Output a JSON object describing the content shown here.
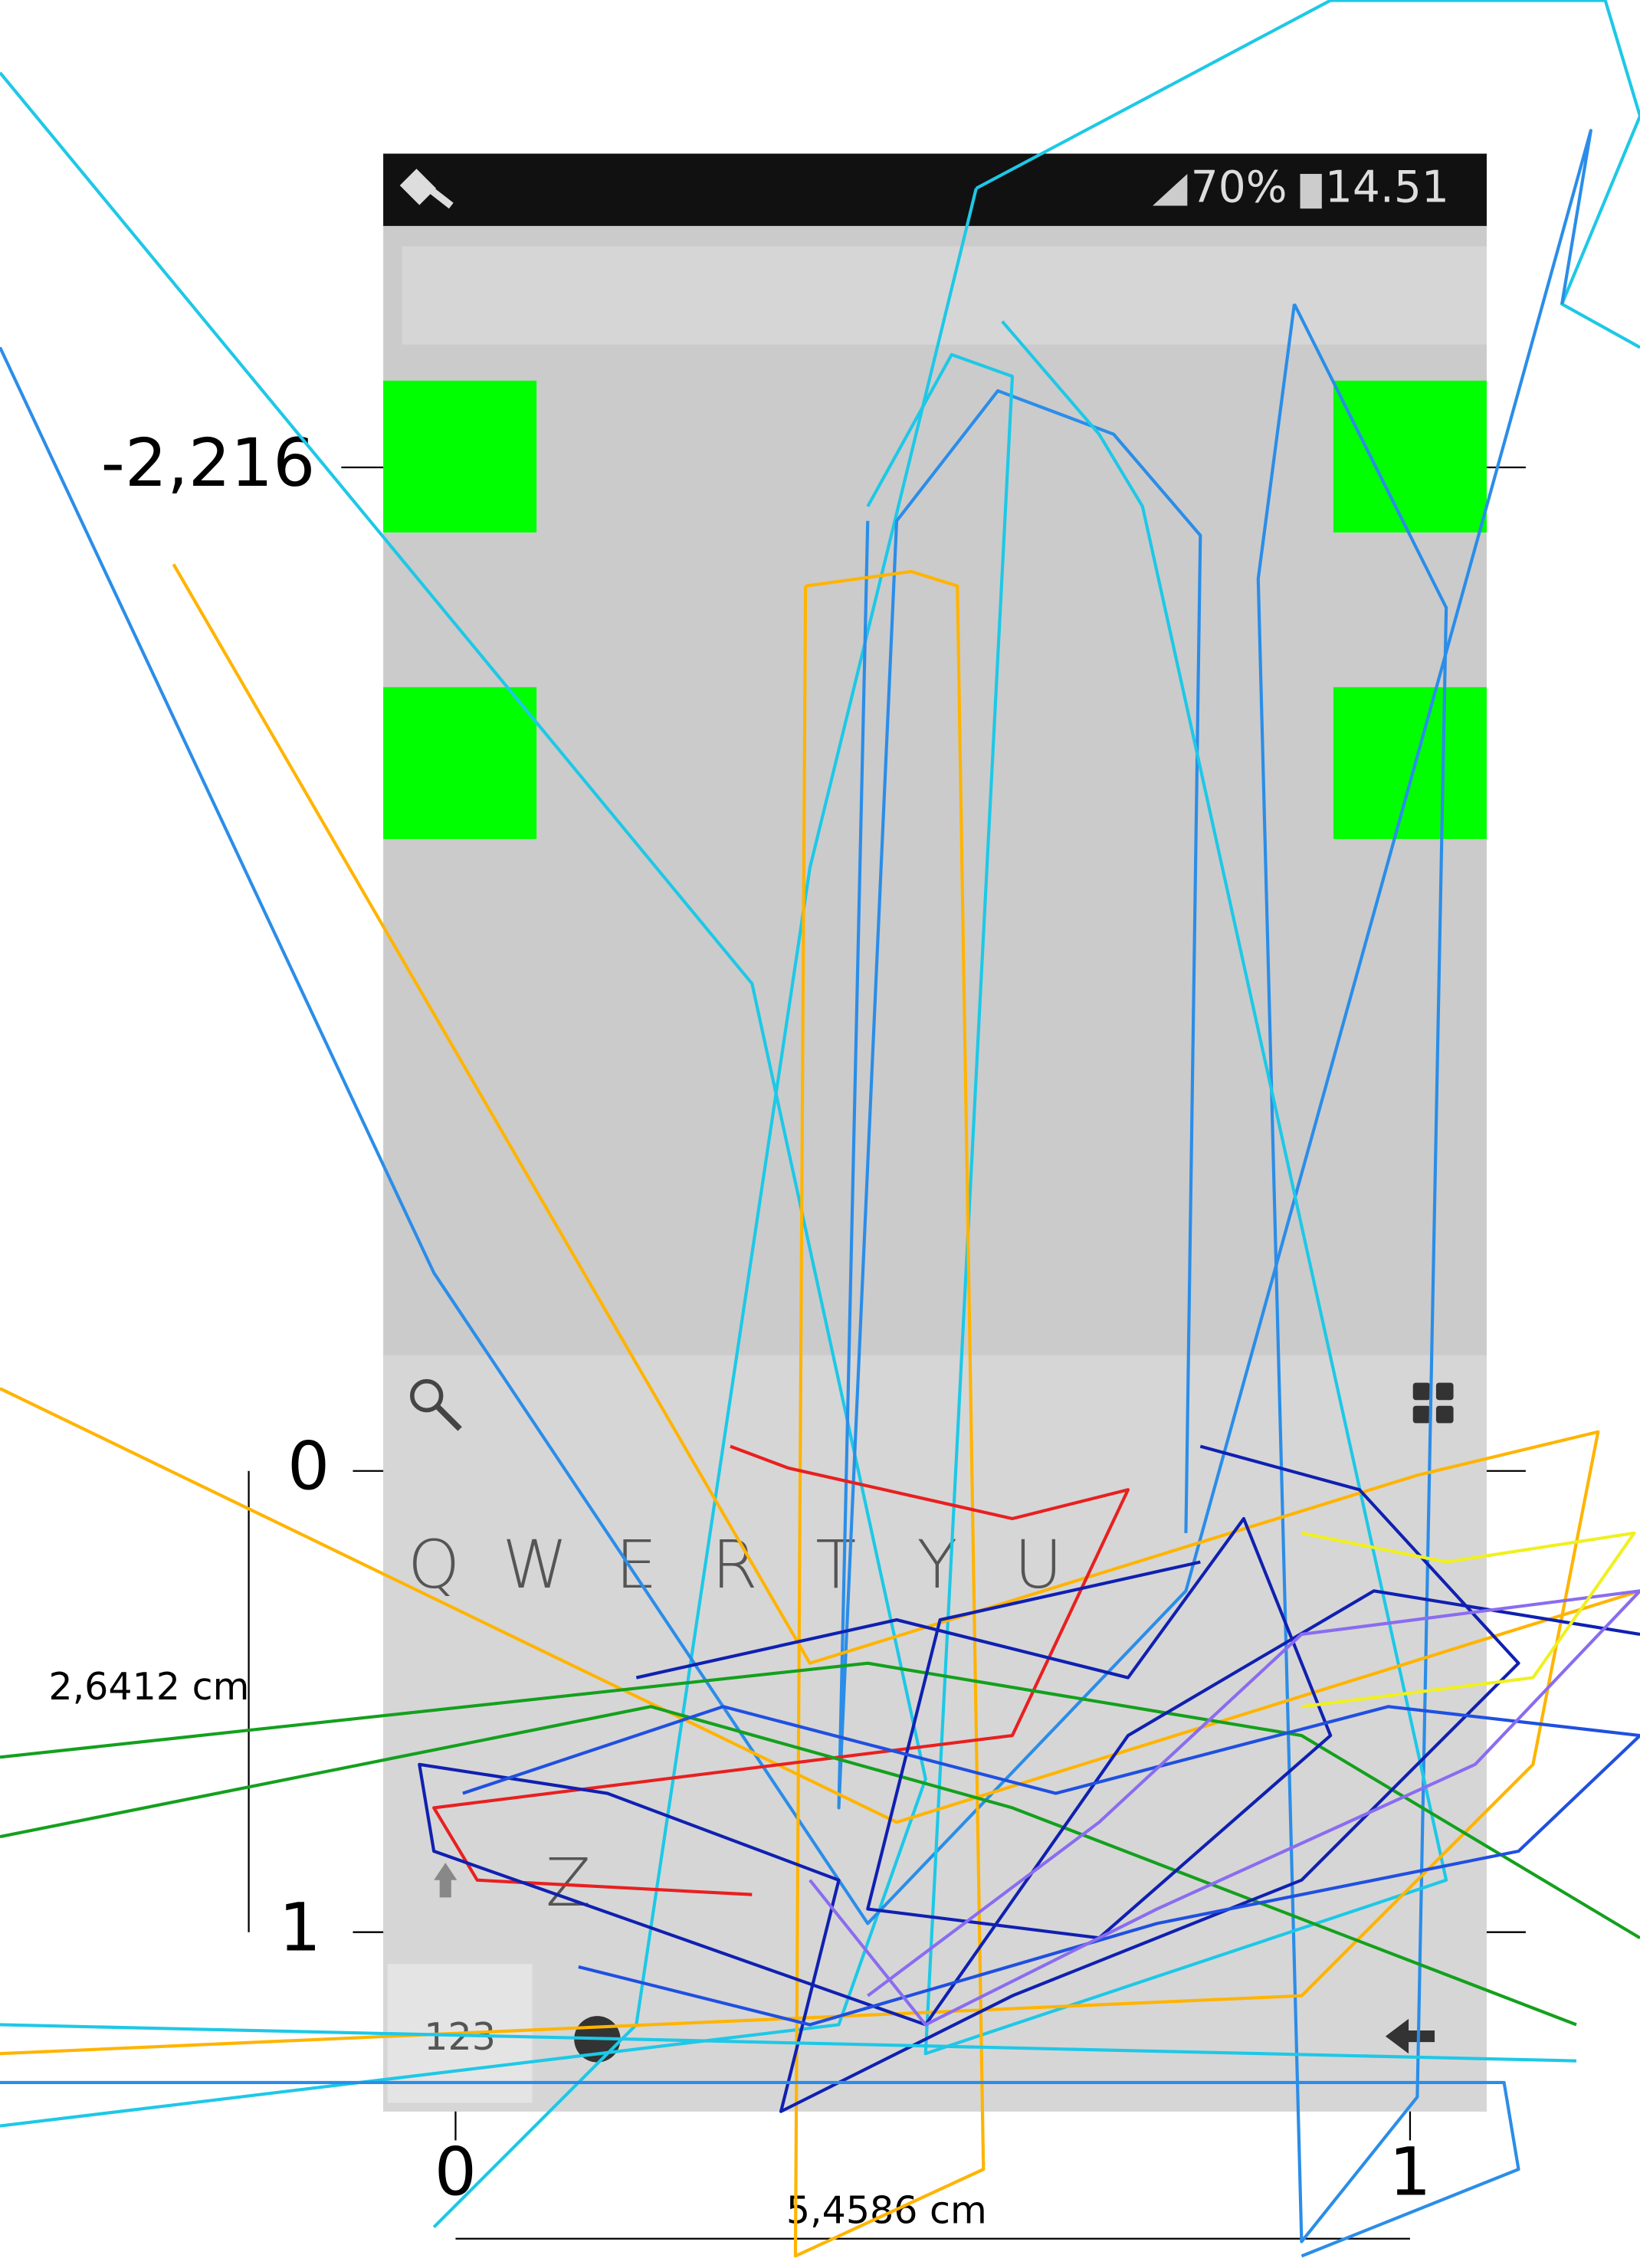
{
  "status_bar": {
    "battery": "70%",
    "time": "14.51"
  },
  "axes": {
    "y_labels": [
      "-2,216",
      "0",
      "1"
    ],
    "x_labels": [
      "0",
      "1"
    ],
    "y_span": "2,6412 cm",
    "x_span": "5,4586 cm"
  },
  "keyboard": {
    "row1": [
      "Q",
      "W",
      "E",
      "R",
      "T",
      "Y",
      "U"
    ],
    "row3": [
      "Z"
    ],
    "mode_key": "123"
  }
}
